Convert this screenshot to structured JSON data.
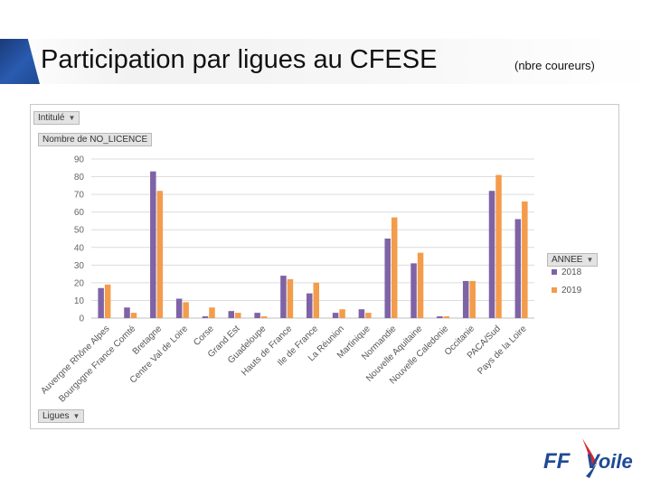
{
  "slide": {
    "title": "Participation par ligues au CFESE",
    "subtitle": "(nbre coureurs)"
  },
  "pivot": {
    "filter_label": "Intitulé",
    "measure_label": "Nombre de NO_LICENCE",
    "axis_field_label": "Ligues",
    "legend_field_label": "ANNEE"
  },
  "colors": {
    "2018": "#7e63a6",
    "2019": "#f39c4c",
    "accent": "#1f4a94"
  },
  "chart_data": {
    "type": "bar",
    "title": "",
    "xlabel": "",
    "ylabel": "",
    "ylim": [
      0,
      90
    ],
    "yticks": [
      0,
      10,
      20,
      30,
      40,
      50,
      60,
      70,
      80,
      90
    ],
    "legend_position": "right",
    "grid": true,
    "categories": [
      "Auvergne Rhône Alpes",
      "Bourgogne France Comté",
      "Bretagne",
      "Centre Val de Loire",
      "Corse",
      "Grand Est",
      "Guadeloupe",
      "Hauts de France",
      "Ile de France",
      "La Réunion",
      "Martinique",
      "Normandie",
      "Nouvelle Aquitaine",
      "Nouvelle Caledonie",
      "Occitanie",
      "PACA/Sud",
      "Pays de la Loire"
    ],
    "series": [
      {
        "name": "2018",
        "values": [
          17,
          6,
          83,
          11,
          1,
          4,
          3,
          24,
          14,
          3,
          5,
          45,
          31,
          1,
          21,
          72,
          56
        ]
      },
      {
        "name": "2019",
        "values": [
          19,
          3,
          72,
          9,
          6,
          3,
          1,
          22,
          20,
          5,
          3,
          57,
          37,
          1,
          21,
          81,
          66
        ]
      }
    ]
  },
  "logo": {
    "text_ff": "FF",
    "text_voile": "Voile"
  }
}
